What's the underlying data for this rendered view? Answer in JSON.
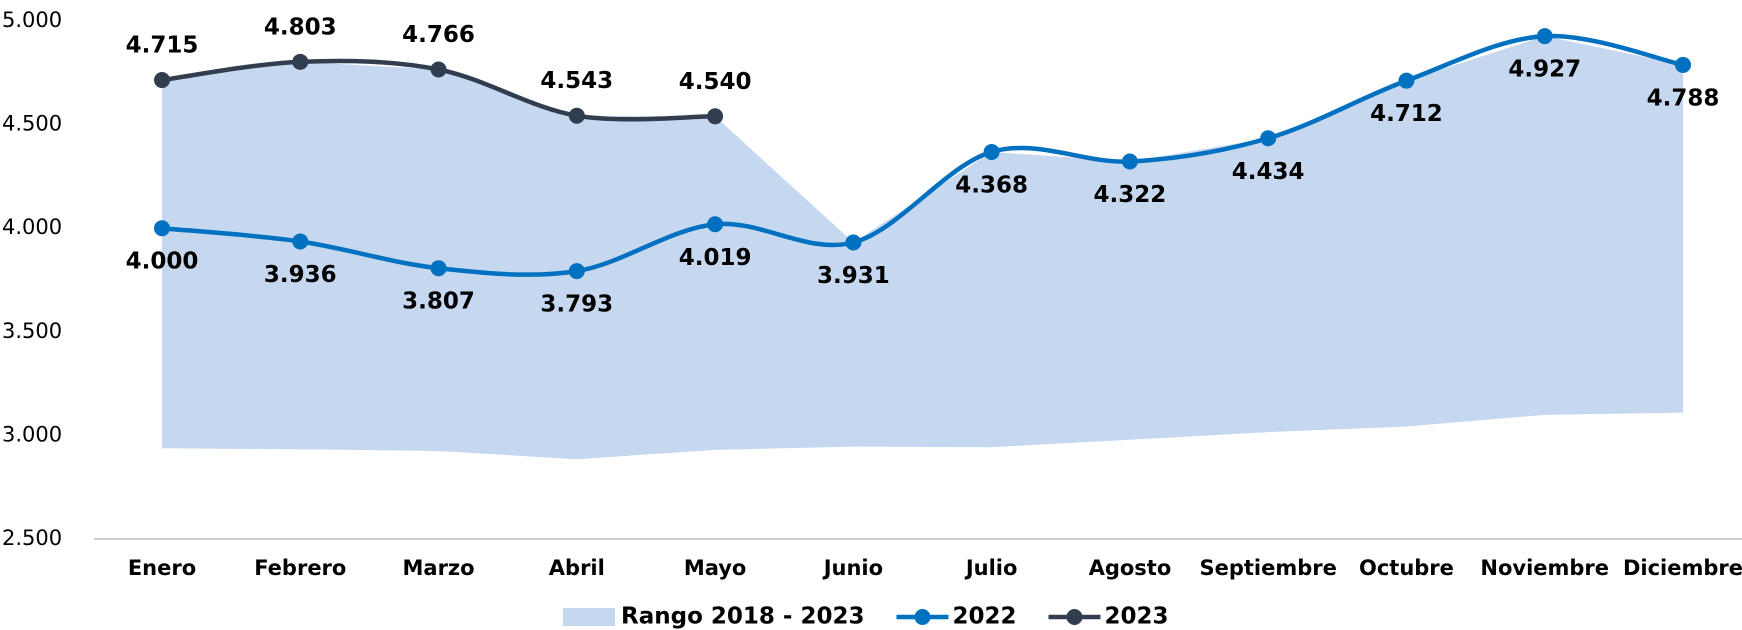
{
  "chart_data": {
    "type": "line",
    "categories": [
      "Enero",
      "Febrero",
      "Marzo",
      "Abril",
      "Mayo",
      "Junio",
      "Julio",
      "Agosto",
      "Septiembre",
      "Octubre",
      "Noviembre",
      "Diciembre"
    ],
    "series": [
      {
        "name": "Rango 2018 - 2023",
        "type": "range",
        "color": "#c5d8f0",
        "low": [
          2938,
          2933,
          2925,
          2885,
          2930,
          2946,
          2943,
          2979,
          3016,
          3043,
          3099,
          3110
        ],
        "high": [
          4715,
          4803,
          4766,
          4543,
          4540,
          3931,
          4368,
          4322,
          4434,
          4712,
          4927,
          4788
        ]
      },
      {
        "name": "2022",
        "color": "#0070c0",
        "labels": "below",
        "values": [
          4000,
          3936,
          3807,
          3793,
          4019,
          3931,
          4368,
          4322,
          4434,
          4712,
          4927,
          4788
        ],
        "value_labels": [
          "4.000",
          "3.936",
          "3.807",
          "3.793",
          "4.019",
          "3.931",
          "4.368",
          "4.322",
          "4.434",
          "4.712",
          "4.927",
          "4.788"
        ]
      },
      {
        "name": "2023",
        "color": "#323e4f",
        "labels": "above",
        "values": [
          4715,
          4803,
          4766,
          4543,
          4540,
          null,
          null,
          null,
          null,
          null,
          null,
          null
        ],
        "value_labels": [
          "4.715",
          "4.803",
          "4.766",
          "4.543",
          "4.540",
          null,
          null,
          null,
          null,
          null,
          null,
          null
        ]
      }
    ],
    "ylim": [
      2500,
      5000
    ],
    "yticks": [
      {
        "value": 2500,
        "label": "2.500"
      },
      {
        "value": 3000,
        "label": "3.000"
      },
      {
        "value": 3500,
        "label": "3.500"
      },
      {
        "value": 4000,
        "label": "4.000"
      },
      {
        "value": 4500,
        "label": "4.500"
      },
      {
        "value": 5000,
        "label": "5.000"
      }
    ],
    "legend": "bottom"
  }
}
